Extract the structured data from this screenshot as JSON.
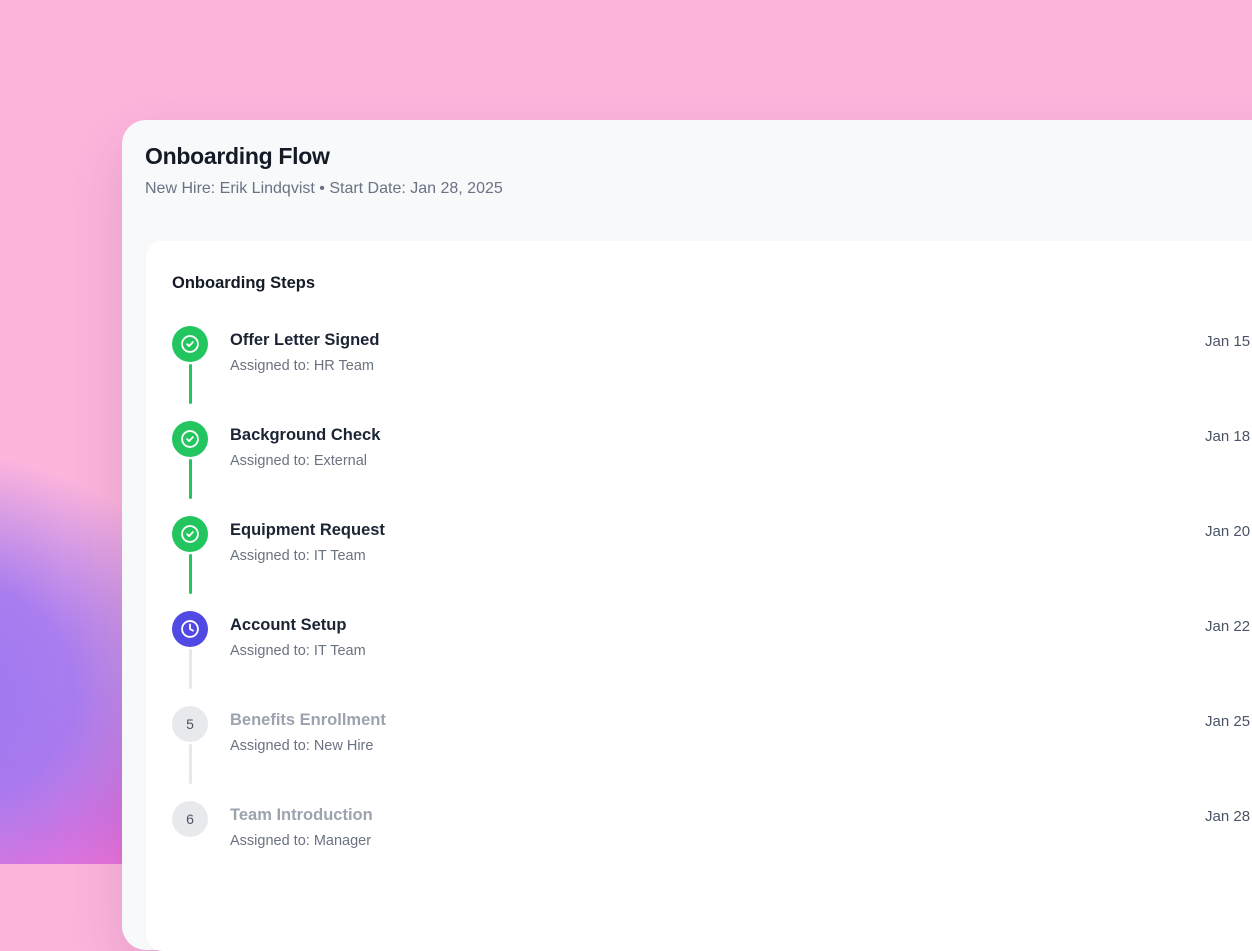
{
  "header": {
    "title": "Onboarding Flow",
    "subtitle": "New Hire: Erik Lindqvist • Start Date: Jan 28, 2025"
  },
  "steps_card": {
    "heading": "Onboarding Steps",
    "steps": [
      {
        "number": 1,
        "title": "Offer Letter Signed",
        "assignee": "Assigned to: HR Team",
        "date": "Jan 15",
        "status": "complete"
      },
      {
        "number": 2,
        "title": "Background Check",
        "assignee": "Assigned to: External",
        "date": "Jan 18",
        "status": "complete"
      },
      {
        "number": 3,
        "title": "Equipment Request",
        "assignee": "Assigned to: IT Team",
        "date": "Jan 20",
        "status": "complete"
      },
      {
        "number": 4,
        "title": "Account Setup",
        "assignee": "Assigned to: IT Team",
        "date": "Jan 22",
        "status": "in_progress"
      },
      {
        "number": 5,
        "title": "Benefits Enrollment",
        "assignee": "Assigned to: New Hire",
        "date": "Jan 25",
        "status": "pending"
      },
      {
        "number": 6,
        "title": "Team Introduction",
        "assignee": "Assigned to: Manager",
        "date": "Jan 28",
        "status": "pending"
      }
    ],
    "status_icons": {
      "complete": "check-circle-icon",
      "in_progress": "clock-icon"
    },
    "colors": {
      "complete": "#22c55e",
      "in_progress": "#5149e4",
      "pending_badge_bg": "#e7e9ed",
      "pending_badge_text": "#4b5563",
      "pending_title": "#9ca3af",
      "connector_done": "#22c55e",
      "connector_todo": "#e5e7eb",
      "background_pink": "#fdb5dc",
      "background_purple": "#9b74f2",
      "background_magenta": "#ef6ed6"
    }
  }
}
